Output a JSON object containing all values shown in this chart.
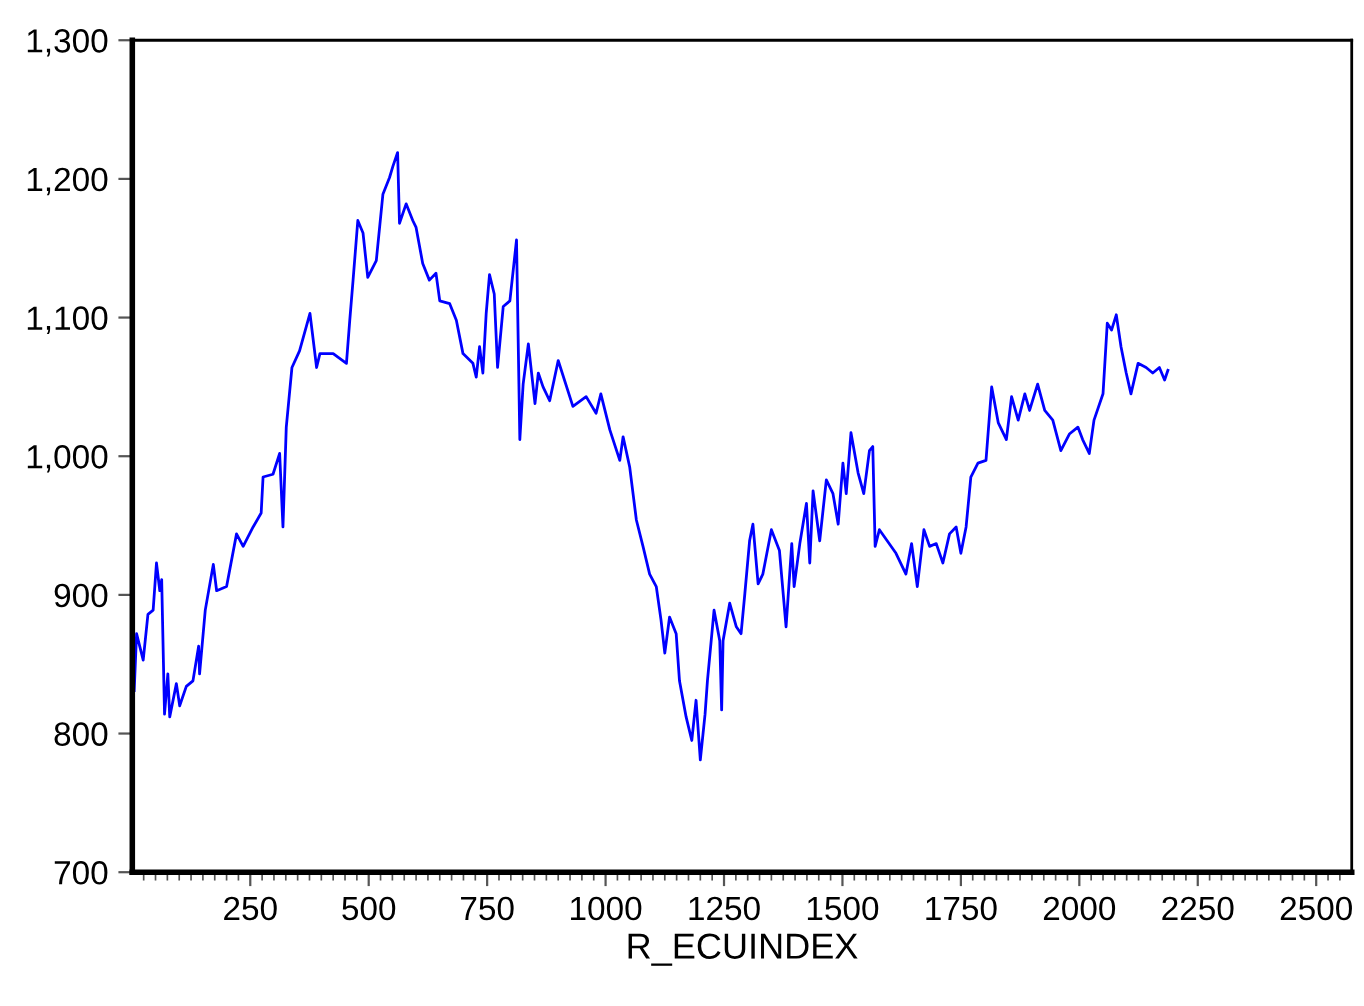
{
  "chart_data": {
    "type": "line",
    "xlabel": "R_ECUINDEX",
    "xlim": [
      1,
      2575
    ],
    "ylim": [
      700,
      1300
    ],
    "xticks": [
      250,
      500,
      750,
      1000,
      1250,
      1500,
      1750,
      2000,
      2250,
      2500,
      {
        "value": 25,
        "label": null
      },
      {
        "value": 50,
        "label": null
      },
      {
        "value": 75,
        "label": null
      },
      {
        "value": 100,
        "label": null
      },
      {
        "value": 125,
        "label": null
      },
      {
        "value": 150,
        "label": null
      },
      {
        "value": 175,
        "label": null
      },
      {
        "value": 200,
        "label": null
      },
      {
        "value": 225,
        "label": null
      },
      {
        "value": 275,
        "label": null
      },
      {
        "value": 300,
        "label": null
      },
      {
        "value": 325,
        "label": null
      },
      {
        "value": 350,
        "label": null
      },
      {
        "value": 375,
        "label": null
      },
      {
        "value": 400,
        "label": null
      },
      {
        "value": 425,
        "label": null
      },
      {
        "value": 450,
        "label": null
      },
      {
        "value": 475,
        "label": null
      },
      {
        "value": 525,
        "label": null
      },
      {
        "value": 550,
        "label": null
      },
      {
        "value": 575,
        "label": null
      },
      {
        "value": 600,
        "label": null
      },
      {
        "value": 625,
        "label": null
      },
      {
        "value": 650,
        "label": null
      },
      {
        "value": 675,
        "label": null
      },
      {
        "value": 700,
        "label": null
      },
      {
        "value": 725,
        "label": null
      },
      {
        "value": 775,
        "label": null
      },
      {
        "value": 800,
        "label": null
      },
      {
        "value": 825,
        "label": null
      },
      {
        "value": 850,
        "label": null
      },
      {
        "value": 875,
        "label": null
      },
      {
        "value": 900,
        "label": null
      },
      {
        "value": 925,
        "label": null
      },
      {
        "value": 950,
        "label": null
      },
      {
        "value": 975,
        "label": null
      },
      {
        "value": 1025,
        "label": null
      },
      {
        "value": 1050,
        "label": null
      },
      {
        "value": 1075,
        "label": null
      },
      {
        "value": 1100,
        "label": null
      },
      {
        "value": 1125,
        "label": null
      },
      {
        "value": 1150,
        "label": null
      },
      {
        "value": 1175,
        "label": null
      },
      {
        "value": 1200,
        "label": null
      },
      {
        "value": 1225,
        "label": null
      },
      {
        "value": 1275,
        "label": null
      },
      {
        "value": 1300,
        "label": null
      },
      {
        "value": 1325,
        "label": null
      },
      {
        "value": 1350,
        "label": null
      },
      {
        "value": 1375,
        "label": null
      },
      {
        "value": 1400,
        "label": null
      },
      {
        "value": 1425,
        "label": null
      },
      {
        "value": 1450,
        "label": null
      },
      {
        "value": 1475,
        "label": null
      },
      {
        "value": 1525,
        "label": null
      },
      {
        "value": 1550,
        "label": null
      },
      {
        "value": 1575,
        "label": null
      },
      {
        "value": 1600,
        "label": null
      },
      {
        "value": 1625,
        "label": null
      },
      {
        "value": 1650,
        "label": null
      },
      {
        "value": 1675,
        "label": null
      },
      {
        "value": 1700,
        "label": null
      },
      {
        "value": 1725,
        "label": null
      },
      {
        "value": 1775,
        "label": null
      },
      {
        "value": 1800,
        "label": null
      },
      {
        "value": 1825,
        "label": null
      },
      {
        "value": 1850,
        "label": null
      },
      {
        "value": 1875,
        "label": null
      },
      {
        "value": 1900,
        "label": null
      },
      {
        "value": 1925,
        "label": null
      },
      {
        "value": 1950,
        "label": null
      },
      {
        "value": 1975,
        "label": null
      },
      {
        "value": 2025,
        "label": null
      },
      {
        "value": 2050,
        "label": null
      },
      {
        "value": 2075,
        "label": null
      },
      {
        "value": 2100,
        "label": null
      },
      {
        "value": 2125,
        "label": null
      },
      {
        "value": 2150,
        "label": null
      },
      {
        "value": 2175,
        "label": null
      },
      {
        "value": 2200,
        "label": null
      },
      {
        "value": 2225,
        "label": null
      },
      {
        "value": 2275,
        "label": null
      },
      {
        "value": 2300,
        "label": null
      },
      {
        "value": 2325,
        "label": null
      },
      {
        "value": 2350,
        "label": null
      },
      {
        "value": 2375,
        "label": null
      },
      {
        "value": 2400,
        "label": null
      },
      {
        "value": 2425,
        "label": null
      },
      {
        "value": 2450,
        "label": null
      },
      {
        "value": 2475,
        "label": null
      },
      {
        "value": 2525,
        "label": null
      },
      {
        "value": 2550,
        "label": null
      }
    ],
    "yticks": [
      {
        "value": 700,
        "label": "700"
      },
      {
        "value": 800,
        "label": "800"
      },
      {
        "value": 900,
        "label": "900"
      },
      {
        "value": 1000,
        "label": "1,000"
      },
      {
        "value": 1100,
        "label": "1,100"
      },
      {
        "value": 1200,
        "label": "1,200"
      },
      {
        "value": 1300,
        "label": "1,300"
      }
    ],
    "grid": false,
    "marker": "none",
    "line_style": "solid",
    "series": [
      {
        "color": "#0000ff",
        "x": [
          5,
          10,
          24,
          34,
          45,
          52,
          59,
          63,
          69,
          76,
          80,
          94,
          101,
          115,
          129,
          141,
          143,
          155,
          172,
          179,
          200,
          221,
          235,
          256,
          273,
          277,
          298,
          312,
          319,
          326,
          338,
          354,
          376,
          390,
          397,
          425,
          453,
          460,
          467,
          477,
          488,
          498,
          516,
          530,
          544,
          551,
          561,
          565,
          579,
          593,
          600,
          614,
          628,
          642,
          650,
          671,
          685,
          699,
          720,
          727,
          734,
          741,
          748,
          755,
          765,
          772,
          784,
          798,
          812,
          819,
          826,
          837,
          851,
          858,
          868,
          882,
          900,
          931,
          959,
          980,
          990,
          1009,
          1030,
          1037,
          1051,
          1065,
          1079,
          1093,
          1107,
          1117,
          1125,
          1135,
          1149,
          1156,
          1170,
          1182,
          1191,
          1200,
          1210,
          1215,
          1229,
          1241,
          1245,
          1248,
          1262,
          1276,
          1286,
          1294,
          1304,
          1311,
          1322,
          1332,
          1350,
          1367,
          1381,
          1393,
          1398,
          1410,
          1424,
          1431,
          1438,
          1452,
          1466,
          1480,
          1491,
          1501,
          1508,
          1518,
          1533,
          1545,
          1557,
          1564,
          1569,
          1578,
          1613,
          1634,
          1646,
          1658,
          1672,
          1684,
          1698,
          1712,
          1726,
          1740,
          1750,
          1761,
          1771,
          1786,
          1803,
          1815,
          1829,
          1846,
          1857,
          1871,
          1885,
          1895,
          1912,
          1927,
          1944,
          1961,
          1979,
          1997,
          2007,
          2021,
          2031,
          2050,
          2059,
          2068,
          2078,
          2088,
          2099,
          2109,
          2124,
          2141,
          2155,
          2169,
          2180,
          2187
        ],
        "values": [
          831,
          872,
          853,
          886,
          889,
          923,
          903,
          911,
          814,
          843,
          812,
          836,
          820,
          834,
          838,
          863,
          843,
          889,
          922,
          903,
          906,
          944,
          935,
          949,
          959,
          985,
          987,
          1002,
          949,
          1021,
          1064,
          1076,
          1103,
          1064,
          1074,
          1074,
          1067,
          1098,
          1127,
          1170,
          1161,
          1129,
          1141,
          1189,
          1201,
          1209,
          1219,
          1168,
          1182,
          1170,
          1165,
          1139,
          1127,
          1132,
          1112,
          1110,
          1098,
          1074,
          1067,
          1057,
          1079,
          1060,
          1103,
          1131,
          1117,
          1064,
          1108,
          1112,
          1156,
          1012,
          1052,
          1081,
          1038,
          1060,
          1050,
          1040,
          1069,
          1036,
          1043,
          1031,
          1045,
          1019,
          997,
          1014,
          992,
          954,
          935,
          915,
          906,
          882,
          858,
          884,
          872,
          838,
          812,
          795,
          824,
          781,
          814,
          838,
          889,
          867,
          817,
          867,
          894,
          877,
          872,
          901,
          939,
          951,
          908,
          915,
          947,
          932,
          877,
          937,
          906,
          937,
          966,
          923,
          975,
          939,
          983,
          973,
          951,
          995,
          973,
          1017,
          988,
          973,
          1004,
          1007,
          935,
          947,
          930,
          915,
          937,
          906,
          947,
          935,
          937,
          923,
          944,
          949,
          930,
          949,
          985,
          995,
          997,
          1050,
          1024,
          1012,
          1043,
          1026,
          1045,
          1033,
          1052,
          1033,
          1026,
          1004,
          1016,
          1021,
          1012,
          1002,
          1026,
          1045,
          1096,
          1091,
          1102,
          1079,
          1060,
          1045,
          1067,
          1064,
          1060,
          1064,
          1055,
          1062
        ]
      }
    ]
  }
}
